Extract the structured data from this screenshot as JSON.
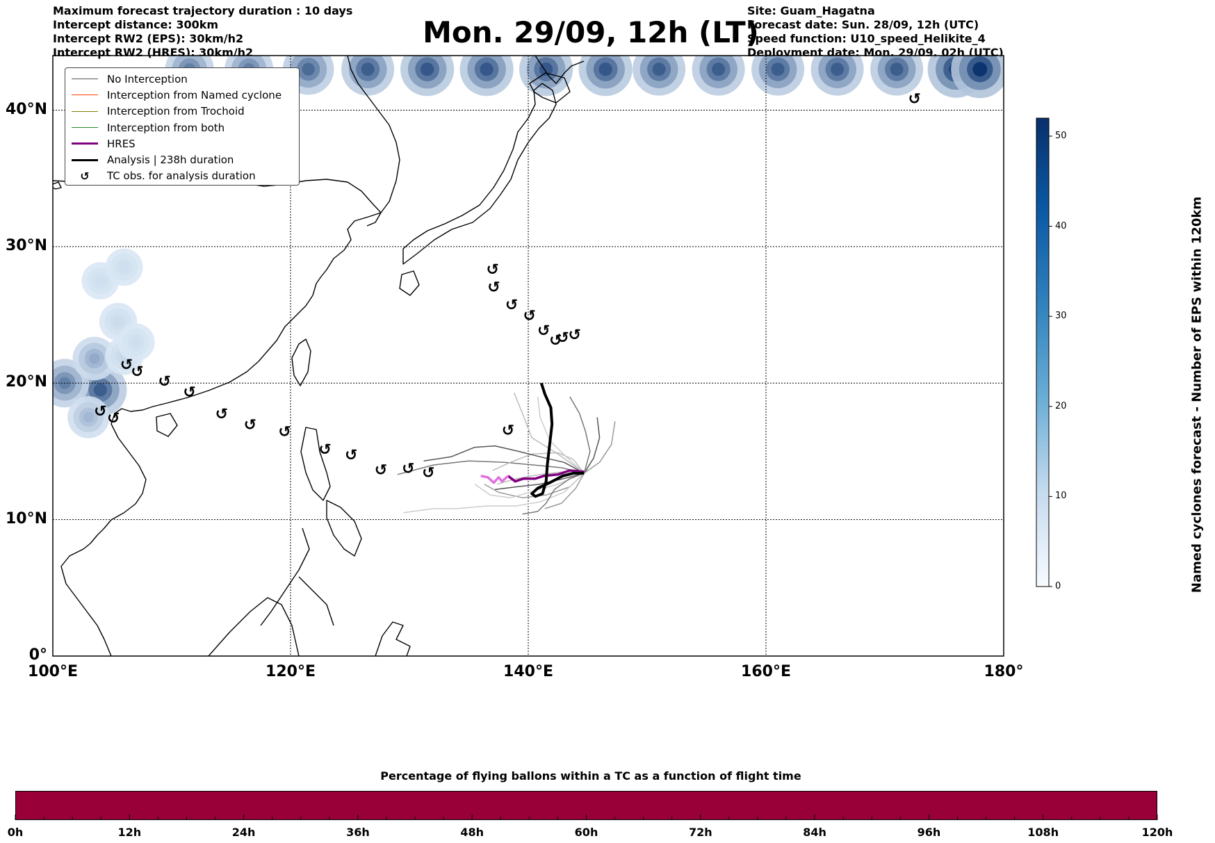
{
  "header_left": [
    "Maximum forecast trajectory duration : 10 days",
    "Intercept distance: 300km",
    "Intercept RW2 (EPS):  30km/h2",
    "Intercept RW2 (HRES): 30km/h2"
  ],
  "title": "Mon. 29/09, 12h (LT)",
  "header_right": [
    "Site: Guam_Hagatna",
    "Forecast date: Sun. 28/09, 12h (UTC)",
    "Speed function: U10_speed_Helikite_4",
    "Deployment date: Mon. 29/09, 02h (UTC)"
  ],
  "map": {
    "lon_range": [
      100,
      180
    ],
    "lat_range": [
      0,
      44
    ],
    "lon_gridlines": [
      120,
      140,
      160
    ],
    "lat_gridlines": [
      10,
      20,
      30,
      40
    ],
    "lon_labels": [
      "100°E",
      "120°E",
      "140°E",
      "160°E",
      "180°"
    ],
    "lat_labels": [
      "0°",
      "10°N",
      "20°N",
      "30°N",
      "40°N"
    ],
    "colors": {
      "analysis": "#000000",
      "hres": "#800080",
      "hres_light": "#e070e0",
      "eps": "#666666",
      "cyclone_dark": "#08306b",
      "cyclone_light": "#dbe9f6"
    }
  },
  "legend": {
    "items": [
      {
        "label": "No Interception",
        "color": "#555555",
        "width": 1
      },
      {
        "label": "Interception from Named cyclone",
        "color": "#ff4500",
        "width": 1
      },
      {
        "label": "Interception from Trochoid",
        "color": "#808000",
        "width": 1
      },
      {
        "label": "Interception from both",
        "color": "#228b22",
        "width": 1
      },
      {
        "label": "HRES",
        "color": "#800080",
        "width": 3
      },
      {
        "label": "Analysis | 238h duration",
        "color": "#000000",
        "width": 3
      },
      {
        "label": "TC obs. for analysis duration",
        "color": "#000000",
        "width": 0,
        "icon": "cyclone-icon"
      }
    ]
  },
  "colorbar": {
    "label": "Named cyclones forecast - Number of EPS within 120km",
    "ticks": [
      "0",
      "10",
      "20",
      "30",
      "40",
      "50"
    ],
    "range": [
      0,
      52
    ]
  },
  "cyclone_density": [
    {
      "lon": 111.5,
      "lat": 43.0,
      "value": 30
    },
    {
      "lon": 116.5,
      "lat": 43.0,
      "value": 30
    },
    {
      "lon": 121.5,
      "lat": 43.0,
      "value": 36
    },
    {
      "lon": 126.5,
      "lat": 43.0,
      "value": 40
    },
    {
      "lon": 131.5,
      "lat": 43.0,
      "value": 42
    },
    {
      "lon": 136.5,
      "lat": 43.0,
      "value": 42
    },
    {
      "lon": 141.5,
      "lat": 43.0,
      "value": 42
    },
    {
      "lon": 146.5,
      "lat": 43.0,
      "value": 42
    },
    {
      "lon": 151.0,
      "lat": 43.0,
      "value": 40
    },
    {
      "lon": 156.0,
      "lat": 43.0,
      "value": 40
    },
    {
      "lon": 161.0,
      "lat": 43.0,
      "value": 40
    },
    {
      "lon": 166.0,
      "lat": 43.0,
      "value": 40
    },
    {
      "lon": 171.0,
      "lat": 43.0,
      "value": 40
    },
    {
      "lon": 176.0,
      "lat": 43.0,
      "value": 50
    },
    {
      "lon": 178.0,
      "lat": 43.0,
      "value": 52
    },
    {
      "lon": 104.0,
      "lat": 19.5,
      "value": 40
    },
    {
      "lon": 101.0,
      "lat": 20.0,
      "value": 30
    },
    {
      "lon": 103.5,
      "lat": 21.8,
      "value": 18
    },
    {
      "lon": 103.0,
      "lat": 17.5,
      "value": 14
    },
    {
      "lon": 106.0,
      "lat": 22.0,
      "value": 5
    },
    {
      "lon": 105.5,
      "lat": 24.5,
      "value": 4
    },
    {
      "lon": 107.0,
      "lat": 23.0,
      "value": 3
    },
    {
      "lon": 104.0,
      "lat": 27.5,
      "value": 3
    },
    {
      "lon": 106.0,
      "lat": 28.5,
      "value": 3
    }
  ],
  "tc_obs": [
    {
      "lon": 172.5,
      "lat": 40.8
    },
    {
      "lon": 137.0,
      "lat": 28.3
    },
    {
      "lon": 137.1,
      "lat": 27.0
    },
    {
      "lon": 138.6,
      "lat": 25.7
    },
    {
      "lon": 140.1,
      "lat": 24.9
    },
    {
      "lon": 141.3,
      "lat": 23.8
    },
    {
      "lon": 142.3,
      "lat": 23.1
    },
    {
      "lon": 142.9,
      "lat": 23.3
    },
    {
      "lon": 143.9,
      "lat": 23.5
    },
    {
      "lon": 106.2,
      "lat": 21.3
    },
    {
      "lon": 107.1,
      "lat": 20.8
    },
    {
      "lon": 109.4,
      "lat": 20.1
    },
    {
      "lon": 111.5,
      "lat": 19.3
    },
    {
      "lon": 104.0,
      "lat": 17.9
    },
    {
      "lon": 105.1,
      "lat": 17.4
    },
    {
      "lon": 114.2,
      "lat": 17.7
    },
    {
      "lon": 116.6,
      "lat": 16.9
    },
    {
      "lon": 119.5,
      "lat": 16.4
    },
    {
      "lon": 138.3,
      "lat": 16.5
    },
    {
      "lon": 122.9,
      "lat": 15.1
    },
    {
      "lon": 125.1,
      "lat": 14.7
    },
    {
      "lon": 127.6,
      "lat": 13.6
    },
    {
      "lon": 129.9,
      "lat": 13.7
    },
    {
      "lon": 131.6,
      "lat": 13.4
    }
  ],
  "analysis_track": [
    [
      141.1,
      20.0
    ],
    [
      141.4,
      19.2
    ],
    [
      141.9,
      18.2
    ],
    [
      142.0,
      17.0
    ],
    [
      141.8,
      15.5
    ],
    [
      141.6,
      14.0
    ],
    [
      141.5,
      12.8
    ],
    [
      141.2,
      11.9
    ],
    [
      140.6,
      11.7
    ],
    [
      140.3,
      11.9
    ],
    [
      140.8,
      12.3
    ],
    [
      141.8,
      12.7
    ],
    [
      142.9,
      13.2
    ],
    [
      143.8,
      13.4
    ],
    [
      144.7,
      13.4
    ]
  ],
  "hres_track": [
    [
      144.7,
      13.5
    ],
    [
      143.5,
      13.6
    ],
    [
      142.5,
      13.3
    ],
    [
      141.3,
      13.2
    ],
    [
      140.6,
      13.0
    ],
    [
      139.6,
      13.0
    ],
    [
      138.9,
      12.8
    ],
    [
      138.3,
      13.2
    ],
    [
      137.8,
      12.8
    ],
    [
      137.5,
      13.1
    ],
    [
      137.1,
      12.7
    ],
    [
      136.6,
      13.1
    ],
    [
      136.0,
      13.2
    ]
  ],
  "eps_tracks": [
    [
      [
        144.7,
        13.4
      ],
      [
        143.0,
        13.0
      ],
      [
        141.0,
        12.6
      ],
      [
        139.0,
        12.4
      ],
      [
        137.2,
        12.2
      ]
    ],
    [
      [
        144.7,
        13.4
      ],
      [
        142.8,
        13.8
      ],
      [
        140.5,
        14.0
      ],
      [
        138.0,
        14.2
      ],
      [
        135.0,
        14.3
      ],
      [
        132.0,
        14.0
      ],
      [
        129.0,
        13.3
      ]
    ],
    [
      [
        144.7,
        13.4
      ],
      [
        143.5,
        12.4
      ],
      [
        141.5,
        11.8
      ],
      [
        139.5,
        11.6
      ],
      [
        137.5,
        12.0
      ],
      [
        136.3,
        12.6
      ]
    ],
    [
      [
        144.7,
        13.4
      ],
      [
        143.8,
        14.4
      ],
      [
        142.5,
        14.9
      ],
      [
        140.3,
        14.8
      ],
      [
        138.5,
        14.2
      ],
      [
        137.0,
        13.6
      ]
    ],
    [
      [
        144.7,
        13.4
      ],
      [
        143.0,
        12.0
      ],
      [
        141.0,
        11.3
      ],
      [
        139.0,
        11.0
      ],
      [
        136.5,
        11.0
      ],
      [
        134.0,
        10.8
      ],
      [
        132.0,
        10.8
      ],
      [
        129.5,
        10.5
      ]
    ],
    [
      [
        144.7,
        13.4
      ],
      [
        145.5,
        14.5
      ],
      [
        146.0,
        16.0
      ],
      [
        145.8,
        17.5
      ]
    ],
    [
      [
        144.7,
        13.4
      ],
      [
        145.2,
        15.0
      ],
      [
        144.8,
        16.5
      ],
      [
        144.3,
        17.8
      ],
      [
        143.5,
        19.0
      ]
    ],
    [
      [
        144.7,
        13.4
      ],
      [
        146.0,
        14.2
      ],
      [
        147.0,
        15.5
      ],
      [
        147.3,
        17.2
      ]
    ],
    [
      [
        144.7,
        13.4
      ],
      [
        142.5,
        14.8
      ],
      [
        140.3,
        16.0
      ],
      [
        139.5,
        17.8
      ],
      [
        138.8,
        19.3
      ]
    ],
    [
      [
        144.7,
        13.4
      ],
      [
        142.5,
        12.6
      ],
      [
        140.5,
        12.1
      ],
      [
        138.5,
        11.6
      ],
      [
        136.8,
        11.8
      ],
      [
        135.5,
        12.6
      ]
    ],
    [
      [
        144.7,
        13.4
      ],
      [
        143.0,
        14.2
      ],
      [
        141.0,
        14.6
      ],
      [
        139.2,
        15.0
      ],
      [
        137.2,
        15.4
      ],
      [
        135.5,
        15.3
      ],
      [
        133.5,
        14.6
      ],
      [
        131.2,
        14.3
      ]
    ],
    [
      [
        144.7,
        13.4
      ],
      [
        143.5,
        13.0
      ],
      [
        142.2,
        12.2
      ],
      [
        141.5,
        11.2
      ],
      [
        140.8,
        10.6
      ],
      [
        139.5,
        10.4
      ]
    ],
    [
      [
        144.7,
        13.4
      ],
      [
        144.0,
        12.3
      ],
      [
        142.8,
        11.2
      ],
      [
        141.4,
        10.8
      ]
    ],
    [
      [
        144.7,
        13.4
      ],
      [
        143.0,
        13.5
      ],
      [
        141.0,
        13.3
      ],
      [
        139.0,
        13.0
      ],
      [
        137.4,
        12.6
      ]
    ],
    [
      [
        144.7,
        13.4
      ],
      [
        143.2,
        14.6
      ],
      [
        141.8,
        15.8
      ],
      [
        141.0,
        17.5
      ],
      [
        140.8,
        19.0
      ]
    ]
  ],
  "bottom": {
    "title": "Percentage of flying ballons within a TC as a function of flight time",
    "ticks": [
      "0h",
      "12h",
      "24h",
      "36h",
      "48h",
      "60h",
      "72h",
      "84h",
      "96h",
      "108h",
      "120h"
    ],
    "bar_color": "#9a0038"
  }
}
